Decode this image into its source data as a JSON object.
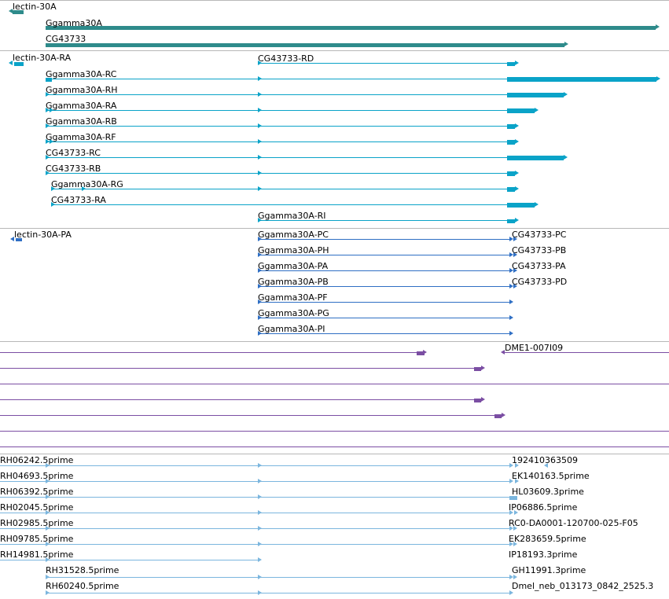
{
  "colors": {
    "gene": "#2e8b8b",
    "mrna": "#0aa3c8",
    "cds": "#2f6fc4",
    "clone": "#7b4ea3",
    "est": "#7bb6de",
    "track_border": "#b8b8b8"
  },
  "icons": {
    "exon_block": "block-icon",
    "intron_line": "line-icon",
    "start_marker": "arrow-marker-icon"
  },
  "tracks": {
    "genes": {
      "labels": [
        "lectin-30A",
        "Ggamma30A",
        "CG43733"
      ]
    },
    "transcripts": {
      "labels": [
        "lectin-30A-RA",
        "CG43733-RD",
        "Ggamma30A-RC",
        "Ggamma30A-RH",
        "Ggamma30A-RA",
        "Ggamma30A-RB",
        "Ggamma30A-RF",
        "CG43733-RC",
        "CG43733-RB",
        "Ggamma30A-RG",
        "CG43733-RA",
        "Ggamma30A-RI"
      ]
    },
    "proteins": {
      "labels": [
        "lectin-30A-PA",
        "Ggamma30A-PC",
        "Ggamma30A-PH",
        "Ggamma30A-PA",
        "Ggamma30A-PB",
        "Ggamma30A-PF",
        "Ggamma30A-PG",
        "Ggamma30A-PI",
        "CG43733-PC",
        "CG43733-PB",
        "CG43733-PA",
        "CG43733-PD"
      ]
    },
    "clones": {
      "labels": [
        "DME1-007I09"
      ]
    },
    "ests": {
      "labels": [
        "RH06242.5prime",
        "RH04693.5prime",
        "RH06392.5prime",
        "RH02045.5prime",
        "RH02985.5prime",
        "RH09785.5prime",
        "RH14981.5prime",
        "RH31528.5prime",
        "RH60240.5prime",
        "192410363509",
        "EK140163.5prime",
        "HL03609.3prime",
        "IP06886.5prime",
        "RC0-DA0001-120700-025-F05",
        "EK283659.5prime",
        "IP18193.3prime",
        "GH11991.3prime",
        "Dmel_neb_013173_0842_2525.3"
      ]
    }
  }
}
